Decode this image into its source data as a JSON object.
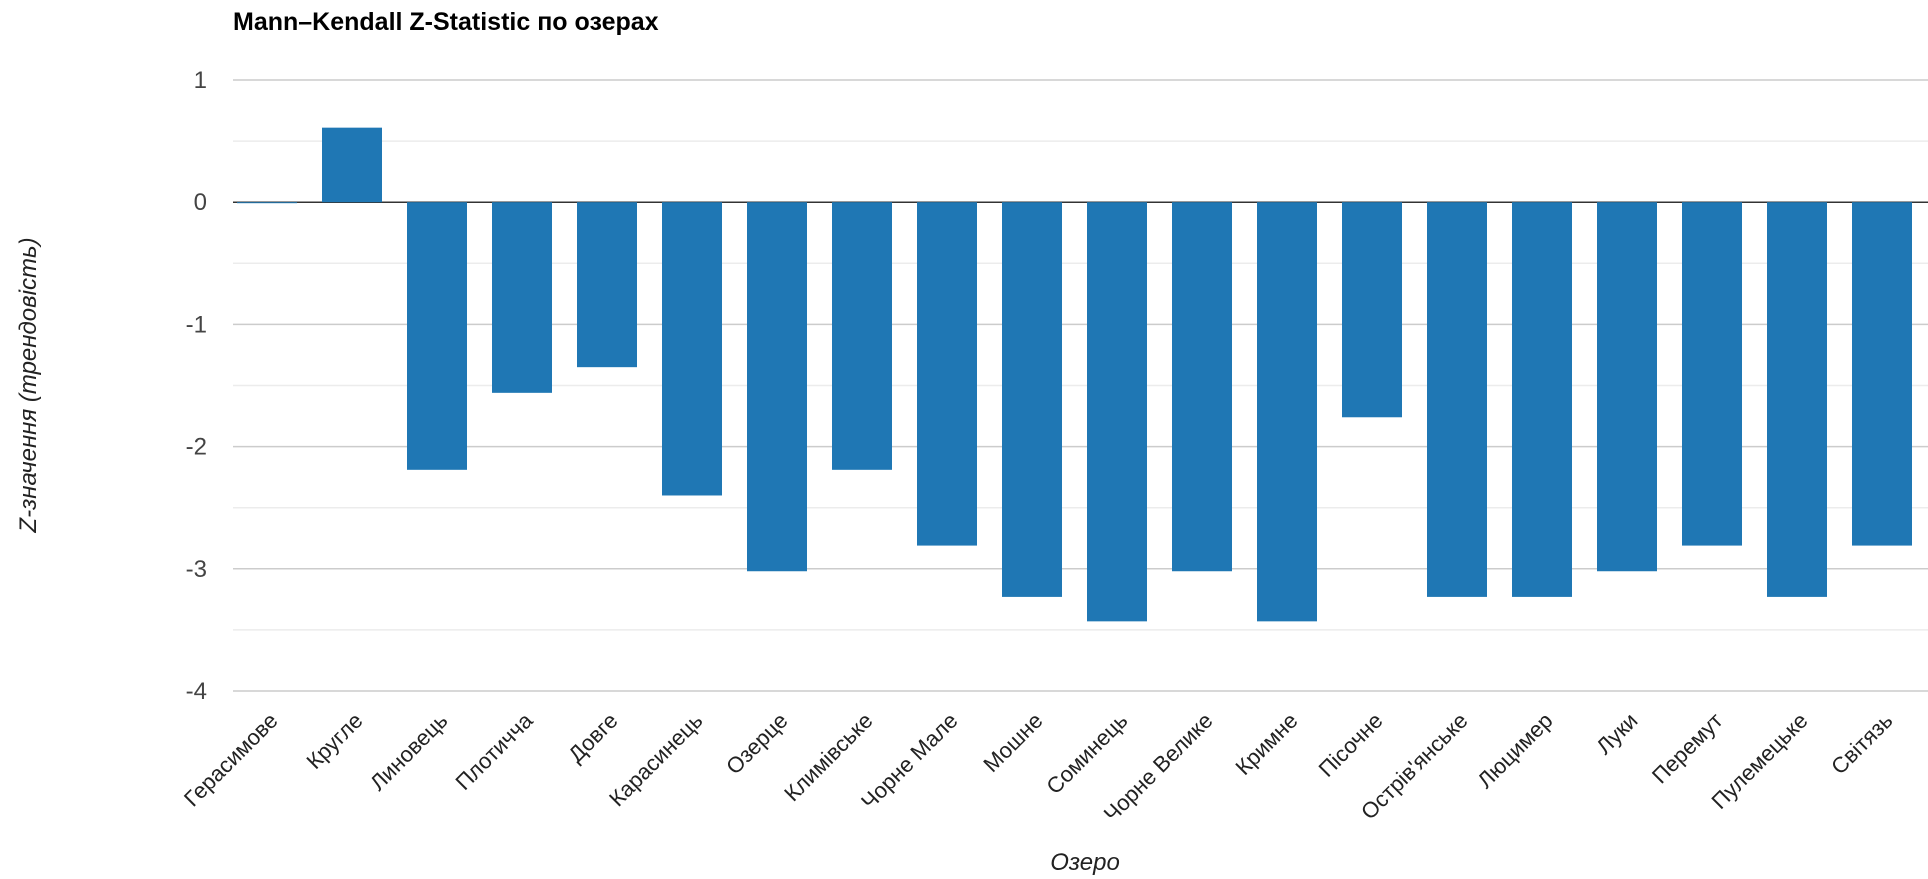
{
  "chart_data": {
    "type": "bar",
    "title": "Mann–Kendall Z-Statistic по озерах",
    "xlabel": "Озеро",
    "ylabel": "Z-значення (трендовість)",
    "ylim": [
      -4,
      1
    ],
    "yticks": [
      "1",
      "0",
      "-1",
      "-2",
      "-3",
      "-4"
    ],
    "grid": true,
    "categories": [
      "Герасимове",
      "Кругле",
      "Линовець",
      "Плотичча",
      "Довге",
      "Карасинець",
      "Озерце",
      "Климівське",
      "Чорне Мале",
      "Мошне",
      "Соминець",
      "Чорне Велике",
      "Кримне",
      "Пісочне",
      "Острів'янське",
      "Люцимер",
      "Луки",
      "Перемут",
      "Пулемецьке",
      "Світязь"
    ],
    "values": [
      0,
      0.61,
      -2.19,
      -1.56,
      -1.35,
      -2.4,
      -3.02,
      -2.19,
      -2.81,
      -3.23,
      -3.43,
      -3.02,
      -3.43,
      -1.76,
      -3.23,
      -3.23,
      -3.02,
      -2.81,
      -3.23,
      -2.81
    ],
    "bar_color": "#1f77b4"
  }
}
